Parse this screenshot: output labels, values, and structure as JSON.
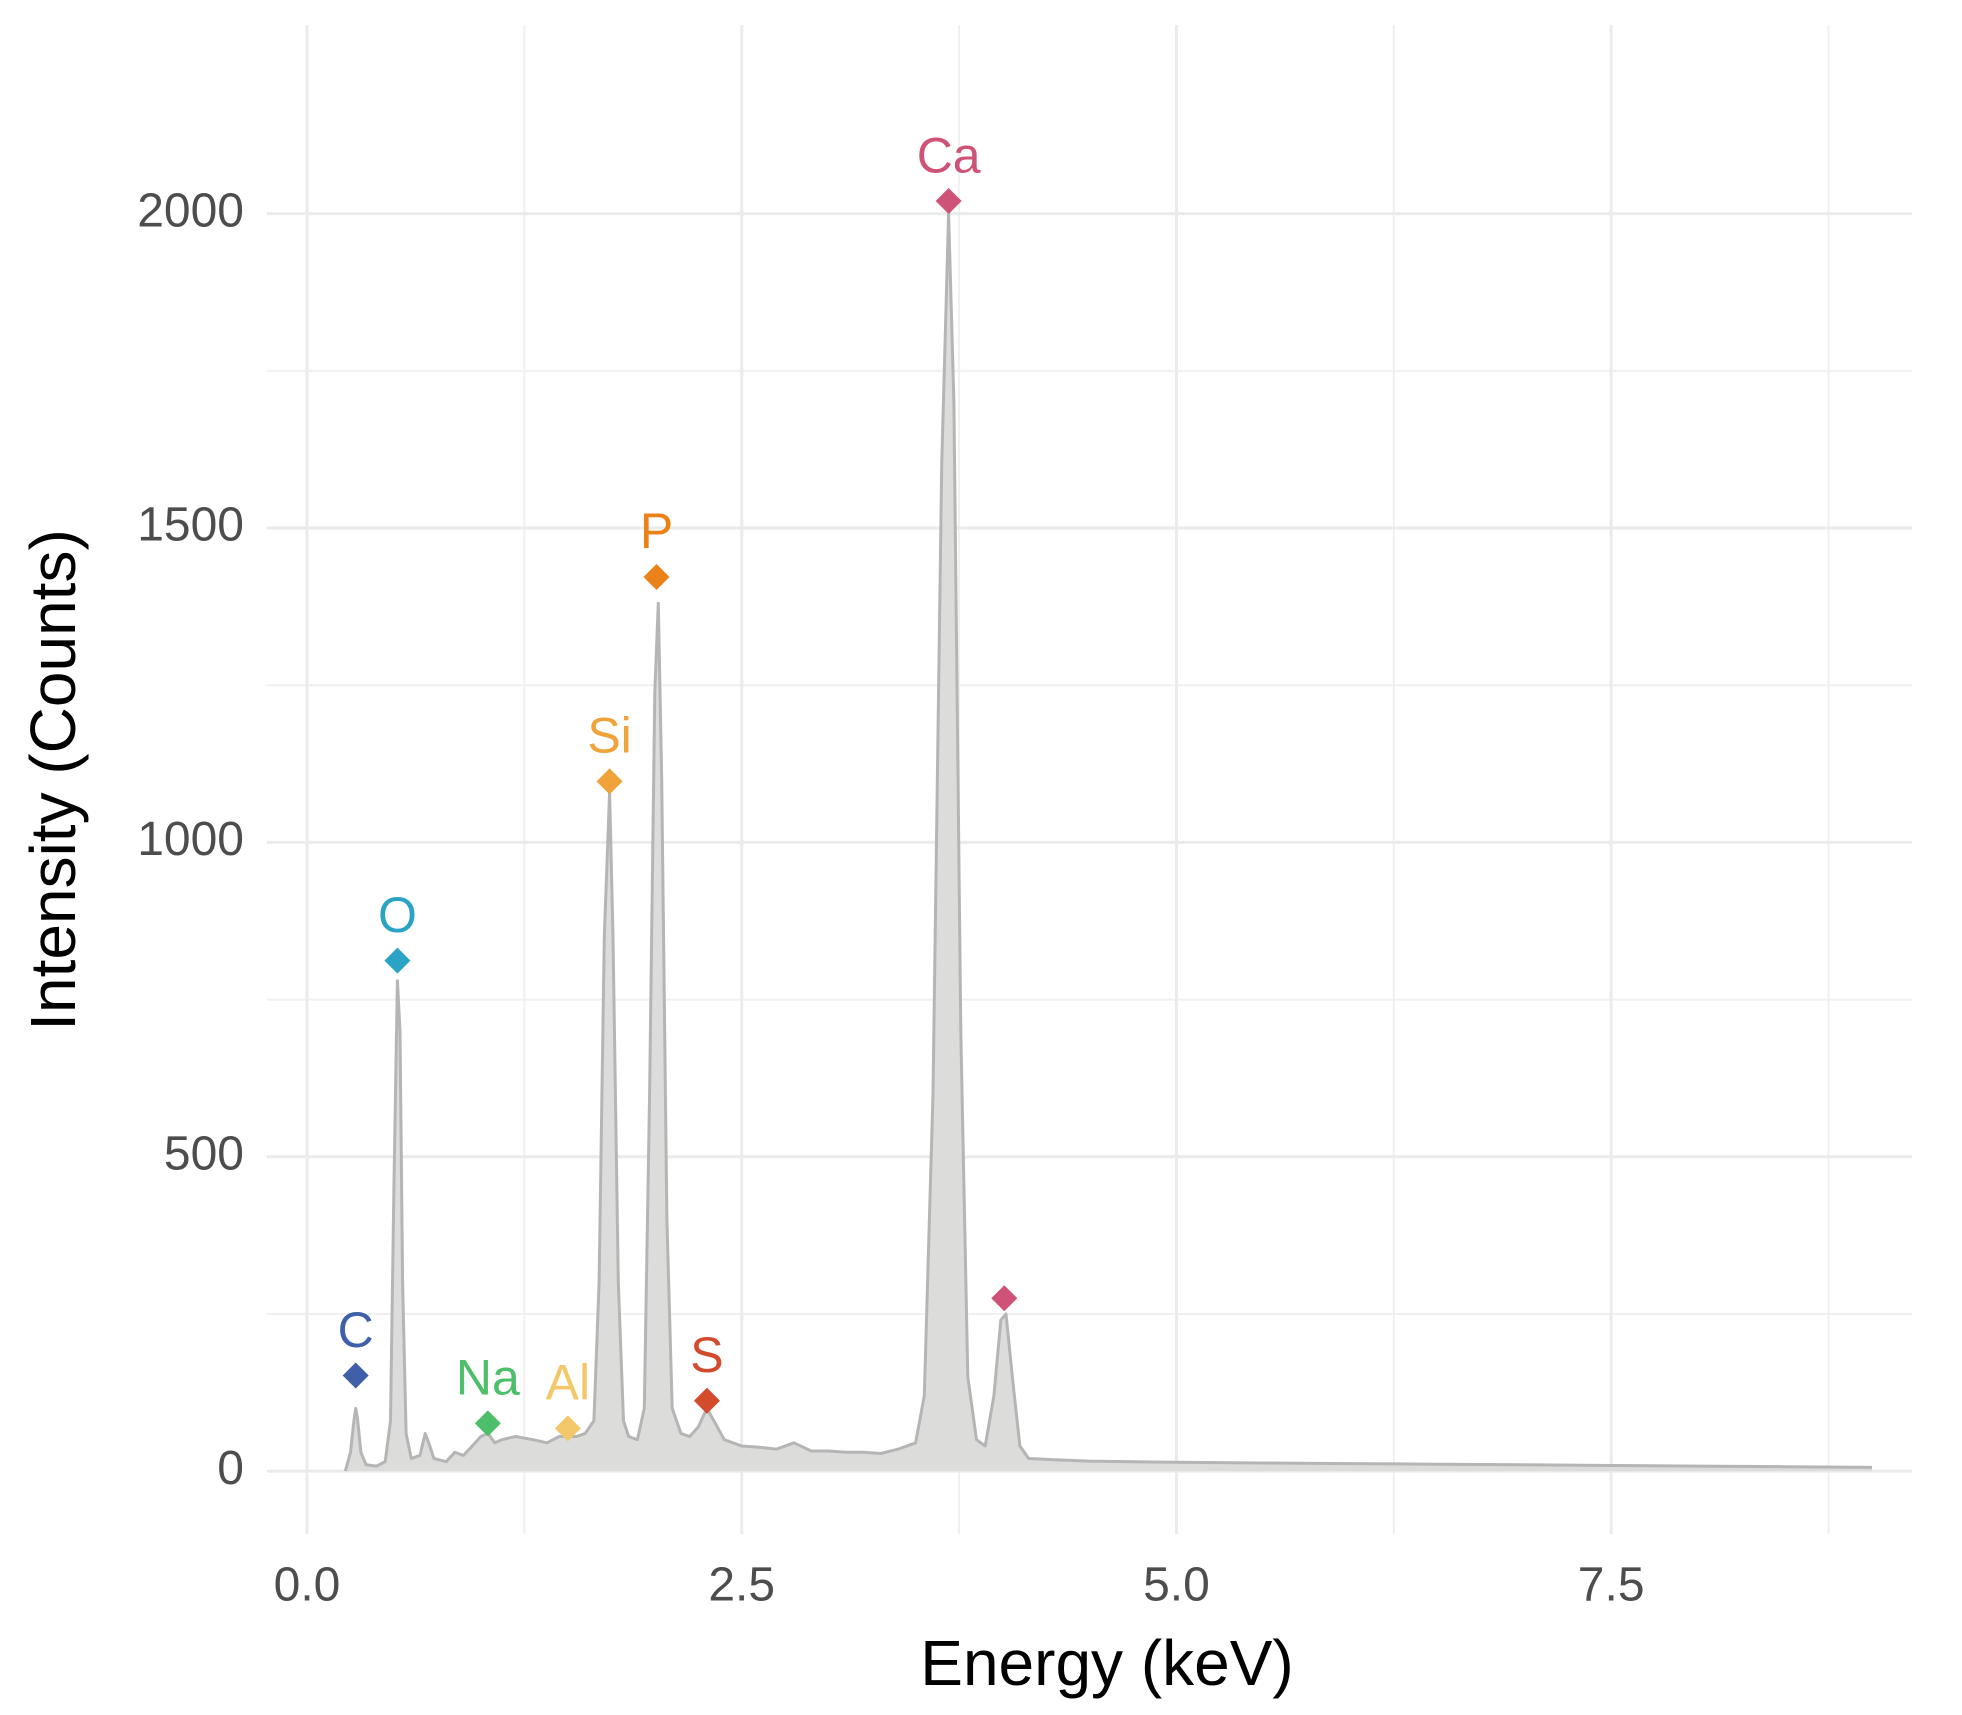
{
  "chart_data": {
    "type": "line",
    "x_label": "Energy (keV)",
    "y_label": "Intensity (Counts)",
    "xlim": [
      -0.23,
      9.23
    ],
    "ylim": [
      -100,
      2300
    ],
    "xticks": [
      {
        "value": 0,
        "label": "0.0"
      },
      2.5,
      {
        "value": 5,
        "label": "5.0"
      },
      7.5
    ],
    "yticks": [
      0,
      500,
      1000,
      1500,
      2000
    ],
    "grid": true,
    "x": [
      0.22,
      0.25,
      0.27,
      0.28,
      0.29,
      0.31,
      0.34,
      0.4,
      0.45,
      0.48,
      0.5,
      0.52,
      0.535,
      0.55,
      0.57,
      0.6,
      0.65,
      0.68,
      0.7,
      0.73,
      0.8,
      0.85,
      0.9,
      0.95,
      1.0,
      1.04,
      1.08,
      1.12,
      1.2,
      1.3,
      1.38,
      1.45,
      1.5,
      1.55,
      1.6,
      1.65,
      1.68,
      1.71,
      1.74,
      1.76,
      1.79,
      1.82,
      1.85,
      1.9,
      1.94,
      1.97,
      2.0,
      2.02,
      2.04,
      2.07,
      2.1,
      2.15,
      2.2,
      2.25,
      2.3,
      2.34,
      2.4,
      2.5,
      2.6,
      2.7,
      2.8,
      2.9,
      3.0,
      3.1,
      3.2,
      3.3,
      3.4,
      3.5,
      3.55,
      3.6,
      3.65,
      3.69,
      3.72,
      3.76,
      3.8,
      3.85,
      3.9,
      3.95,
      3.99,
      4.02,
      4.06,
      4.1,
      4.15,
      4.3,
      4.5,
      5.0,
      5.5,
      6.0,
      6.5,
      7.0,
      7.5,
      8.0,
      8.5,
      9.0
    ],
    "series": [
      {
        "color": "#b5b5b5",
        "fill": "#dcdcdb",
        "values": [
          0,
          30,
          80,
          100,
          85,
          30,
          10,
          8,
          15,
          80,
          450,
          780,
          700,
          300,
          60,
          20,
          25,
          60,
          45,
          20,
          15,
          30,
          25,
          40,
          55,
          60,
          45,
          50,
          55,
          50,
          45,
          55,
          55,
          55,
          60,
          80,
          300,
          850,
          1080,
          850,
          300,
          80,
          55,
          50,
          100,
          600,
          1240,
          1380,
          1100,
          400,
          100,
          60,
          55,
          70,
          100,
          80,
          50,
          40,
          38,
          35,
          45,
          32,
          32,
          30,
          30,
          28,
          35,
          45,
          120,
          600,
          1600,
          2000,
          1700,
          700,
          150,
          50,
          40,
          120,
          240,
          250,
          140,
          40,
          20,
          18,
          16,
          14,
          13,
          12,
          11,
          10,
          9,
          8,
          7,
          6
        ]
      }
    ],
    "peaks": {
      "labels": [
        "C",
        "O",
        "Na",
        "Al",
        "Si",
        "P",
        "S",
        "Ca",
        null
      ],
      "x": [
        0.28,
        0.52,
        1.04,
        1.5,
        1.74,
        2.01,
        2.3,
        3.69,
        4.01
      ],
      "values": [
        152,
        812,
        76,
        68,
        1097,
        1422,
        112,
        2020,
        275
      ],
      "colors": [
        "#3f5fa8",
        "#2aa3c4",
        "#4dbf6a",
        "#f2c86a",
        "#f0a33a",
        "#ea8219",
        "#d24b2d",
        "#cf5377",
        "#cf5377"
      ]
    }
  }
}
